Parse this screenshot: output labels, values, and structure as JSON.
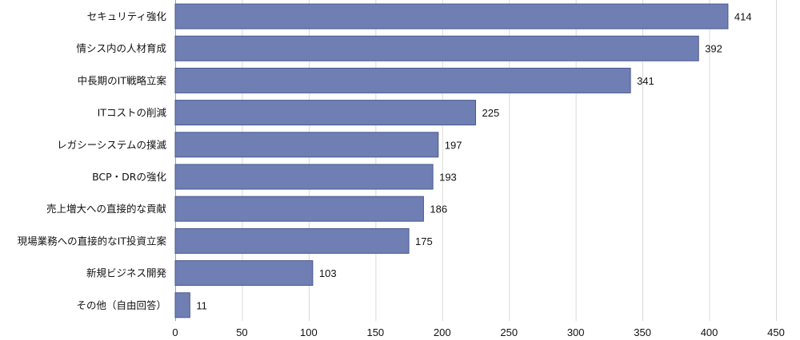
{
  "chart_data": {
    "type": "bar",
    "orientation": "horizontal",
    "categories": [
      "セキュリティ強化",
      "情シス内の人材育成",
      "中長期のIT戦略立案",
      "ITコストの削減",
      "レガシーシステムの撲滅",
      "BCP・DRの強化",
      "売上増大への直接的な貢献",
      "現場業務への直接的なIT投資立案",
      "新規ビジネス開発",
      "その他（自由回答）"
    ],
    "values": [
      414,
      392,
      341,
      225,
      197,
      193,
      186,
      175,
      103,
      11
    ],
    "value_labels": [
      "414",
      "392",
      "341",
      "225",
      "197",
      "193",
      "186",
      "175",
      "103",
      "11"
    ],
    "xlim": [
      0,
      450
    ],
    "xticks": [
      "0",
      "50",
      "100",
      "150",
      "200",
      "250",
      "300",
      "350",
      "400",
      "450"
    ],
    "grid": true,
    "bar_color": "#6f7fb4",
    "bar_edge_color": "#4a5790",
    "title": "",
    "xlabel": "",
    "ylabel": ""
  }
}
